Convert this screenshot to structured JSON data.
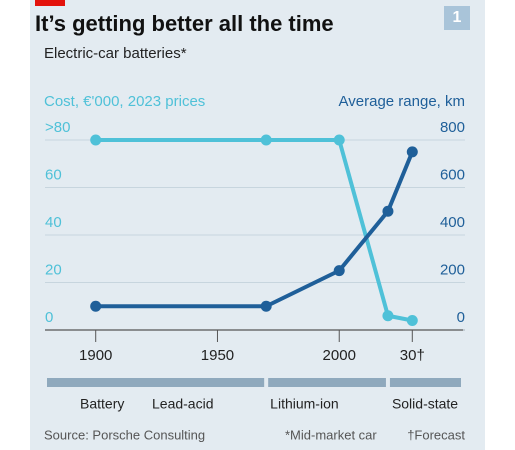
{
  "chart_data": {
    "type": "line",
    "title": "It’s getting better all the time",
    "subtitle": "Electric-car batteries*",
    "chart_number": "1",
    "y_label": "Cost, €'000, 2023 prices",
    "y2_label": "Average range, km",
    "xlim": [
      1880,
      2050
    ],
    "xticks": [
      1900,
      1950,
      2000,
      {
        "value": 2030,
        "label": "30†"
      }
    ],
    "ylim": [
      0,
      80
    ],
    "yticks": [
      0,
      20,
      40,
      60,
      {
        "value": 80,
        "label": ">80"
      }
    ],
    "y2lim": [
      0,
      800
    ],
    "y2ticks": [
      0,
      200,
      400,
      600,
      800
    ],
    "grid": true,
    "series": [
      {
        "name": "Cost",
        "color": "#4fc1d8",
        "x": [
          1900,
          1970,
          2000,
          2020,
          2030
        ],
        "values": [
          80,
          80,
          80,
          6,
          4
        ]
      },
      {
        "name": "Average range",
        "color": "#1f5f99",
        "axis": "y2",
        "x": [
          1900,
          1970,
          2000,
          2020,
          2030
        ],
        "values": [
          100,
          100,
          250,
          500,
          750
        ]
      }
    ],
    "technology": {
      "label": "Battery",
      "periods": [
        {
          "name": "Lead-acid",
          "end": 1970
        },
        {
          "name": "Lithium-ion",
          "end": 2020
        },
        {
          "name": "Solid-state"
        }
      ]
    },
    "source": "Source: Porsche Consulting",
    "notes": [
      "*Mid-market car",
      "†Forecast"
    ]
  }
}
